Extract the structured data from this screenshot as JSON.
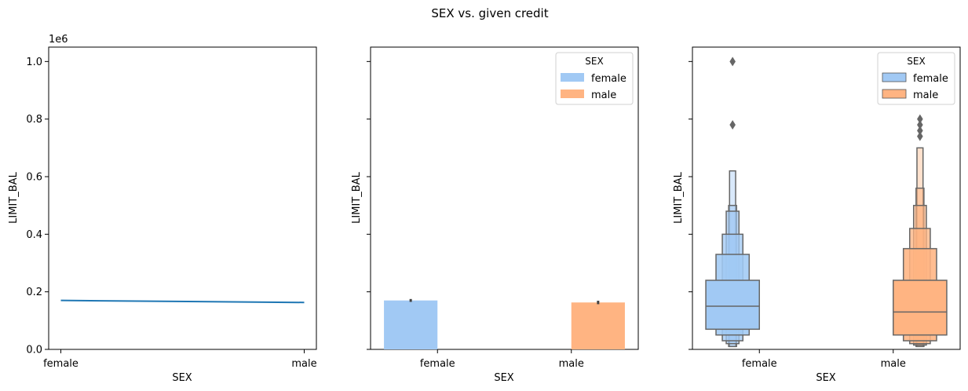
{
  "figure": {
    "title": "SEX vs. given credit"
  },
  "chart_data": [
    {
      "type": "line",
      "xlabel": "SEX",
      "ylabel": "LIMIT_BAL",
      "offset_label": "1e6",
      "x": [
        "female",
        "male"
      ],
      "y": [
        0.17,
        0.163
      ],
      "yticks": [
        0.0,
        0.2,
        0.4,
        0.6,
        0.8,
        1.0
      ],
      "ytick_labels": [
        "0.0",
        "0.2",
        "0.4",
        "0.6",
        "0.8",
        "1.0"
      ],
      "ylim": [
        0,
        1.05
      ],
      "color": "#1f77b4"
    },
    {
      "type": "bar",
      "xlabel": "SEX",
      "ylabel": "LIMIT_BAL",
      "categories": [
        "female",
        "male"
      ],
      "values": [
        0.17,
        0.163
      ],
      "error": [
        0.005,
        0.006
      ],
      "colors": [
        "#a1c9f4",
        "#ffb482"
      ],
      "ylim": [
        0,
        1.05
      ],
      "legend": {
        "title": "SEX",
        "entries": [
          "female",
          "male"
        ],
        "placement": "top-right"
      }
    },
    {
      "type": "boxen",
      "xlabel": "SEX",
      "ylabel": "LIMIT_BAL",
      "categories": [
        "female",
        "male"
      ],
      "colors": [
        "#a1c9f4",
        "#ffb482"
      ],
      "ylim": [
        0,
        1.05
      ],
      "legend": {
        "title": "SEX",
        "entries": [
          "female",
          "male"
        ],
        "placement": "top-right"
      },
      "groups": [
        {
          "name": "female",
          "median": 0.15,
          "boxes": [
            [
              0.07,
              0.24
            ],
            [
              0.05,
              0.33
            ],
            [
              0.03,
              0.4
            ],
            [
              0.02,
              0.48
            ],
            [
              0.01,
              0.5
            ],
            [
              0.01,
              0.62
            ]
          ],
          "outliers": [
            0.78,
            1.0
          ]
        },
        {
          "name": "male",
          "median": 0.13,
          "boxes": [
            [
              0.05,
              0.24
            ],
            [
              0.03,
              0.35
            ],
            [
              0.02,
              0.42
            ],
            [
              0.015,
              0.5
            ],
            [
              0.01,
              0.56
            ],
            [
              0.01,
              0.7
            ]
          ],
          "outliers": [
            0.74,
            0.76,
            0.78,
            0.8
          ]
        }
      ]
    }
  ]
}
